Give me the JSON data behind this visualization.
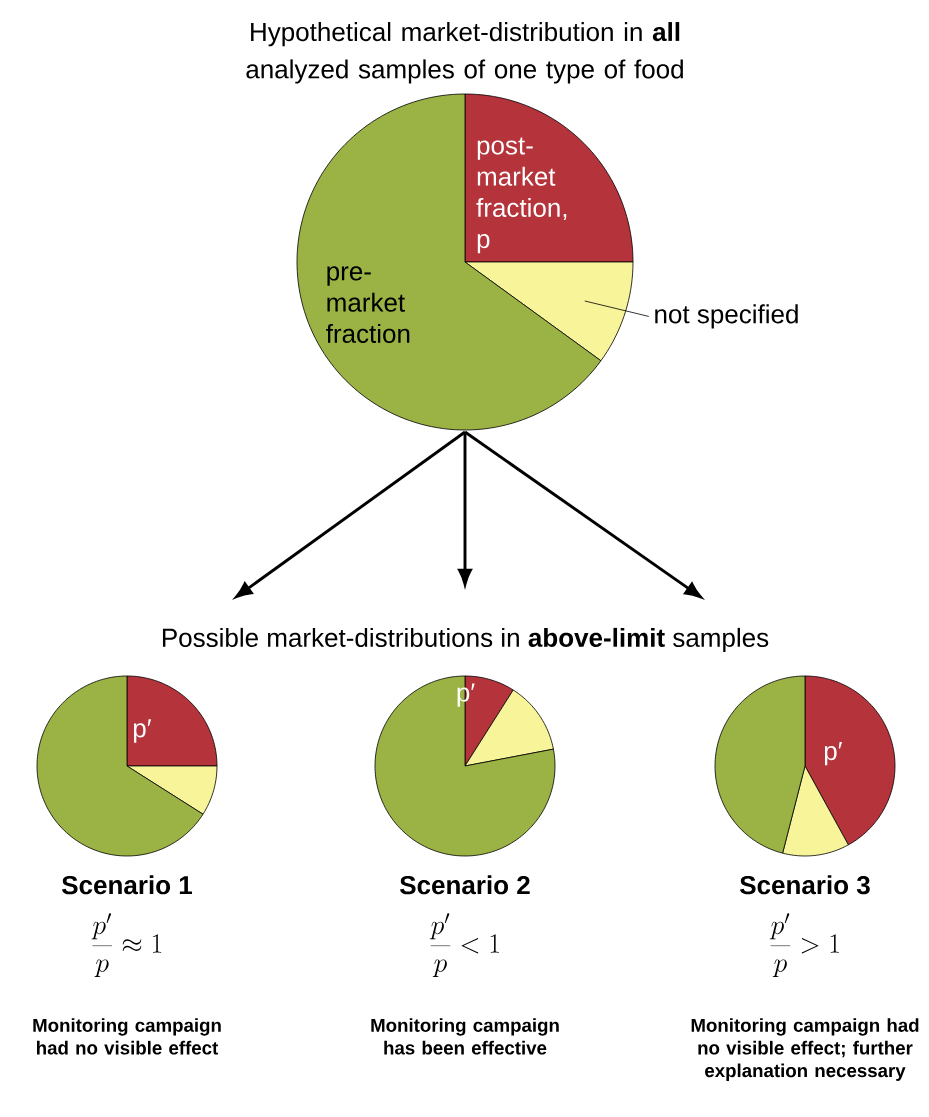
{
  "chart_data": [
    {
      "type": "pie",
      "title": "Hypothetical market-distribution in **all** analyzed samples of one type of food",
      "categories": [
        "post-market fraction, p",
        "not specified",
        "pre-market fraction"
      ],
      "values": [
        25,
        10,
        65
      ],
      "colors": [
        "#b5343c",
        "#f7f49a",
        "#9bb244"
      ],
      "legend": false,
      "annotations": [
        "Possible market-distributions in **above-limit** samples"
      ]
    },
    {
      "type": "pie",
      "title": "Scenario 1",
      "categories": [
        "p′",
        null,
        null
      ],
      "values": [
        25,
        9,
        66
      ],
      "colors": [
        "#b5343c",
        "#f7f49a",
        "#9bb244"
      ],
      "legend": false,
      "annotations": [
        "\\frac{p'}{p}\\approx 1",
        "Monitoring campaign had no visible effect"
      ]
    },
    {
      "type": "pie",
      "title": "Scenario 2",
      "categories": [
        "p′",
        null,
        null
      ],
      "values": [
        9,
        13,
        78
      ],
      "colors": [
        "#b5343c",
        "#f7f49a",
        "#9bb244"
      ],
      "legend": false,
      "annotations": [
        "\\frac{p'}{p}<1",
        "Monitoring campaign has been effective"
      ]
    },
    {
      "type": "pie",
      "title": "Scenario 3",
      "categories": [
        "p′",
        null,
        null
      ],
      "values": [
        42,
        12,
        46
      ],
      "colors": [
        "#b5343c",
        "#f7f49a",
        "#9bb244"
      ],
      "legend": false,
      "annotations": [
        "\\frac{p'}{p}>1",
        "Monitoring campaign had no visible effect; further explanation necessary"
      ]
    }
  ]
}
